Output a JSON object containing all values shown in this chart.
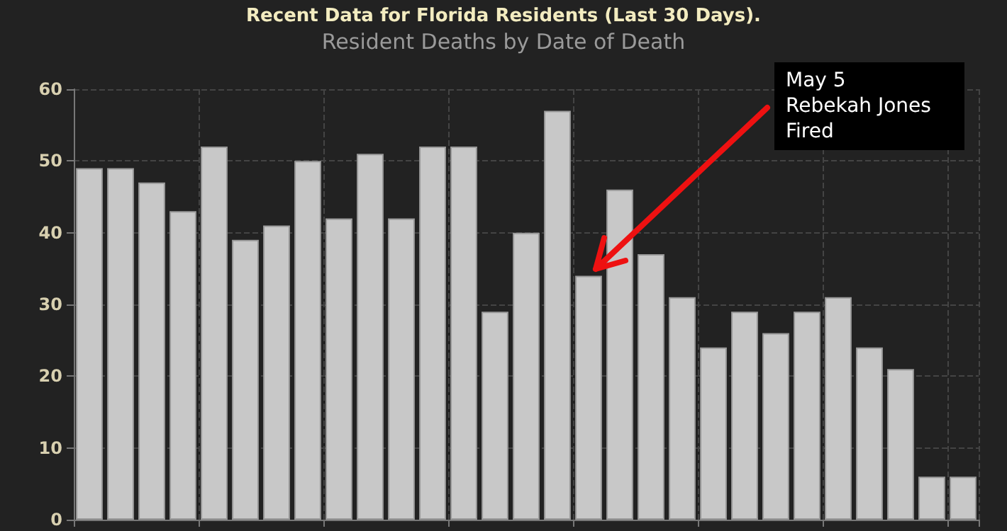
{
  "chart_data": {
    "type": "bar",
    "title": "Recent Data for Florida Residents (Last 30 Days).",
    "subtitle": "Resident Deaths by Date of Death",
    "categories": [
      null,
      null,
      null,
      null,
      null,
      null,
      null,
      null,
      null,
      null,
      null,
      null,
      null,
      null,
      null,
      null,
      null,
      null,
      null,
      null,
      null,
      null,
      null,
      null,
      null,
      null,
      null,
      null,
      null
    ],
    "values": [
      49,
      49,
      47,
      43,
      52,
      39,
      41,
      50,
      42,
      51,
      42,
      52,
      52,
      29,
      40,
      57,
      34,
      46,
      37,
      31,
      24,
      29,
      26,
      29,
      31,
      24,
      21,
      6,
      6
    ],
    "color": "#c8c8c8",
    "ylim": [
      0,
      60
    ],
    "yticks": [
      0,
      10,
      20,
      30,
      40,
      50,
      60
    ],
    "grid": true,
    "annotations": [
      "May 5\nRebekah Jones\nFired"
    ]
  }
}
